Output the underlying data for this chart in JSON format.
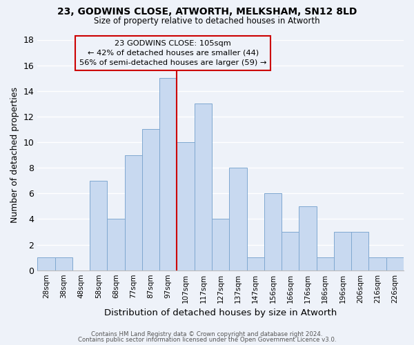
{
  "title": "23, GODWINS CLOSE, ATWORTH, MELKSHAM, SN12 8LD",
  "subtitle": "Size of property relative to detached houses in Atworth",
  "xlabel": "Distribution of detached houses by size in Atworth",
  "ylabel": "Number of detached properties",
  "bar_color": "#c8d9f0",
  "bar_edgecolor": "#7fa8d0",
  "categories": [
    "28sqm",
    "38sqm",
    "48sqm",
    "58sqm",
    "68sqm",
    "77sqm",
    "87sqm",
    "97sqm",
    "107sqm",
    "117sqm",
    "127sqm",
    "137sqm",
    "147sqm",
    "156sqm",
    "166sqm",
    "176sqm",
    "186sqm",
    "196sqm",
    "206sqm",
    "216sqm",
    "226sqm"
  ],
  "values": [
    1,
    1,
    0,
    7,
    4,
    9,
    11,
    15,
    10,
    13,
    4,
    8,
    1,
    6,
    3,
    5,
    1,
    3,
    3,
    1,
    1
  ],
  "ylim": [
    0,
    18
  ],
  "yticks": [
    0,
    2,
    4,
    6,
    8,
    10,
    12,
    14,
    16,
    18
  ],
  "property_line_color": "#cc0000",
  "annotation_title": "23 GODWINS CLOSE: 105sqm",
  "annotation_line1": "← 42% of detached houses are smaller (44)",
  "annotation_line2": "56% of semi-detached houses are larger (59) →",
  "annotation_box_edgecolor": "#cc0000",
  "footer1": "Contains HM Land Registry data © Crown copyright and database right 2024.",
  "footer2": "Contains public sector information licensed under the Open Government Licence v3.0.",
  "background_color": "#eef2f9",
  "grid_color": "#d8dfe8"
}
